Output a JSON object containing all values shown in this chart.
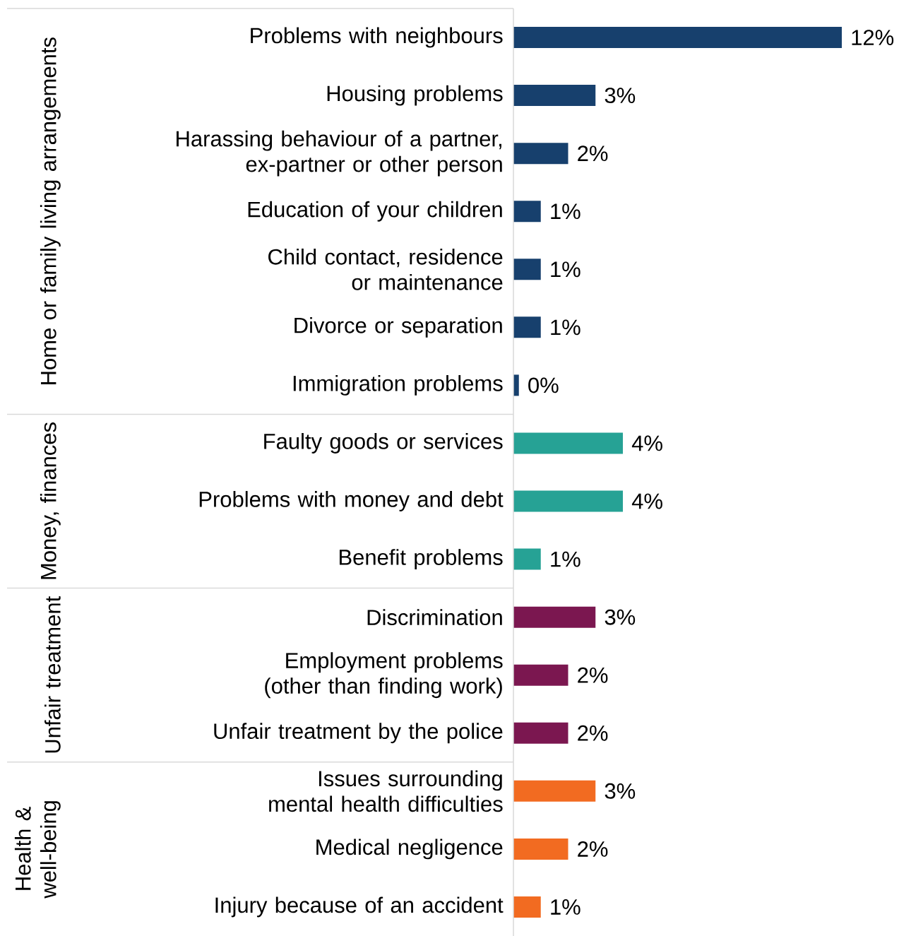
{
  "chart_data": {
    "type": "bar",
    "orientation": "horizontal",
    "categories": [
      "Problems with neighbours",
      "Housing problems",
      "Harassing behaviour of a partner, ex-partner or other person",
      "Education of your children",
      "Child contact, residence or maintenance",
      "Divorce or separation",
      "Immigration problems",
      "Faulty goods or services",
      "Problems with money and debt",
      "Benefit problems",
      "Discrimination",
      "Employment problems (other than finding work)",
      "Unfair treatment by the police",
      "Issues surrounding mental health difficulties",
      "Medical negligence",
      "Injury because of an accident"
    ],
    "values": [
      12,
      3,
      2,
      1,
      1,
      1,
      0.2,
      4,
      4,
      1,
      3,
      2,
      2,
      3,
      2,
      1
    ],
    "value_labels": [
      "12%",
      "3%",
      "2%",
      "1%",
      "1%",
      "1%",
      "0%",
      "4%",
      "4%",
      "1%",
      "3%",
      "2%",
      "2%",
      "3%",
      "2%",
      "1%"
    ],
    "colors": [
      "#17406d",
      "#17406d",
      "#17406d",
      "#17406d",
      "#17406d",
      "#17406d",
      "#17406d",
      "#26a295",
      "#26a295",
      "#26a295",
      "#7b1750",
      "#7b1750",
      "#7b1750",
      "#f26b21",
      "#f26b21",
      "#f26b21"
    ],
    "annotations": [
      "Home or family living arrangements",
      "Money, finances",
      "Unfair treatment",
      "Health & well-being"
    ]
  }
}
